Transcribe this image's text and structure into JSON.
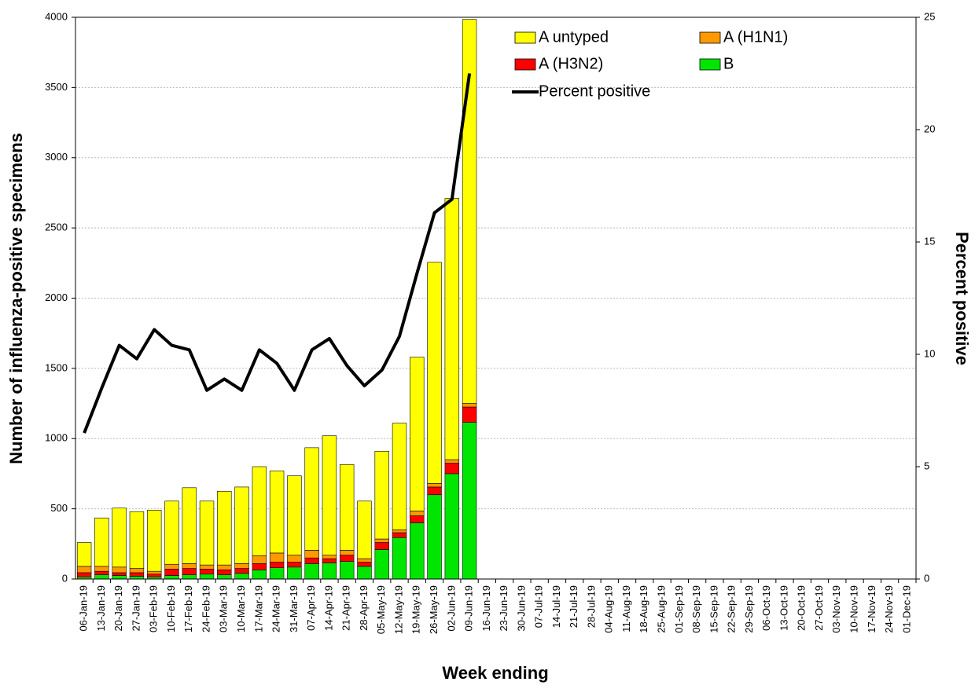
{
  "chart_data": {
    "type": "bar",
    "stacked": true,
    "x_label": "Week ending",
    "y_label": "Number of influenza-positive specimens",
    "y2_label": "Percent positive",
    "categories": [
      "06-Jan-19",
      "13-Jan-19",
      "20-Jan-19",
      "27-Jan-19",
      "03-Feb-19",
      "10-Feb-19",
      "17-Feb-19",
      "24-Feb-19",
      "03-Mar-19",
      "10-Mar-19",
      "17-Mar-19",
      "24-Mar-19",
      "31-Mar-19",
      "07-Apr-19",
      "14-Apr-19",
      "21-Apr-19",
      "28-Apr-19",
      "05-May-19",
      "12-May-19",
      "19-May-19",
      "26-May-19",
      "02-Jun-19",
      "09-Jun-19",
      "16-Jun-19",
      "23-Jun-19",
      "30-Jun-19",
      "07-Jul-19",
      "14-Jul-19",
      "21-Jul-19",
      "28-Jul-19",
      "04-Aug-19",
      "11-Aug-19",
      "18-Aug-19",
      "25-Aug-19",
      "01-Sep-19",
      "08-Sep-19",
      "15-Sep-19",
      "22-Sep-19",
      "29-Sep-19",
      "06-Oct-19",
      "13-Oct-19",
      "20-Oct-19",
      "27-Oct-19",
      "03-Nov-19",
      "10-Nov-19",
      "17-Nov-19",
      "24-Nov-19",
      "01-Dec-19"
    ],
    "series": [
      {
        "name": "B",
        "color": "#00e600",
        "values": [
          15,
          30,
          25,
          20,
          15,
          25,
          30,
          35,
          30,
          40,
          65,
          80,
          85,
          110,
          115,
          125,
          90,
          210,
          295,
          400,
          600,
          750,
          1115,
          null,
          null,
          null,
          null,
          null,
          null,
          null,
          null,
          null,
          null,
          null,
          null,
          null,
          null,
          null,
          null,
          null,
          null,
          null,
          null,
          null,
          null,
          null,
          null,
          null
        ]
      },
      {
        "name": "A (H3N2)",
        "color": "#ff0000",
        "values": [
          30,
          25,
          20,
          25,
          20,
          45,
          45,
          35,
          35,
          35,
          45,
          40,
          35,
          40,
          30,
          45,
          30,
          50,
          35,
          50,
          55,
          75,
          110,
          null,
          null,
          null,
          null,
          null,
          null,
          null,
          null,
          null,
          null,
          null,
          null,
          null,
          null,
          null,
          null,
          null,
          null,
          null,
          null,
          null,
          null,
          null,
          null,
          null
        ]
      },
      {
        "name": "A (H1N1)",
        "color": "#ff9900",
        "values": [
          45,
          35,
          40,
          30,
          20,
          35,
          35,
          30,
          35,
          35,
          55,
          65,
          50,
          55,
          25,
          35,
          25,
          25,
          20,
          35,
          25,
          25,
          25,
          null,
          null,
          null,
          null,
          null,
          null,
          null,
          null,
          null,
          null,
          null,
          null,
          null,
          null,
          null,
          null,
          null,
          null,
          null,
          null,
          null,
          null,
          null,
          null,
          null
        ]
      },
      {
        "name": "A untyped",
        "color": "#ffff00",
        "values": [
          170,
          345,
          420,
          405,
          435,
          450,
          540,
          455,
          525,
          545,
          635,
          585,
          565,
          730,
          850,
          610,
          410,
          625,
          760,
          1095,
          1575,
          1860,
          2735,
          null,
          null,
          null,
          null,
          null,
          null,
          null,
          null,
          null,
          null,
          null,
          null,
          null,
          null,
          null,
          null,
          null,
          null,
          null,
          null,
          null,
          null,
          null,
          null,
          null
        ]
      },
      {
        "name": "Percent positive",
        "type": "line",
        "axis": "y2",
        "color": "#000000",
        "values": [
          6.5,
          8.5,
          10.4,
          9.8,
          11.1,
          10.4,
          10.2,
          8.4,
          8.9,
          8.4,
          10.2,
          9.6,
          8.4,
          10.2,
          10.7,
          9.5,
          8.6,
          9.3,
          10.8,
          13.6,
          16.3,
          16.9,
          22.5,
          null,
          null,
          null,
          null,
          null,
          null,
          null,
          null,
          null,
          null,
          null,
          null,
          null,
          null,
          null,
          null,
          null,
          null,
          null,
          null,
          null,
          null,
          null,
          null,
          null
        ]
      }
    ],
    "ylim": [
      0,
      4000
    ],
    "yticks": [
      0,
      500,
      1000,
      1500,
      2000,
      2500,
      3000,
      3500,
      4000
    ],
    "y2lim": [
      0,
      25
    ],
    "y2ticks": [
      0,
      5,
      10,
      15,
      20,
      25
    ],
    "grid": true
  }
}
